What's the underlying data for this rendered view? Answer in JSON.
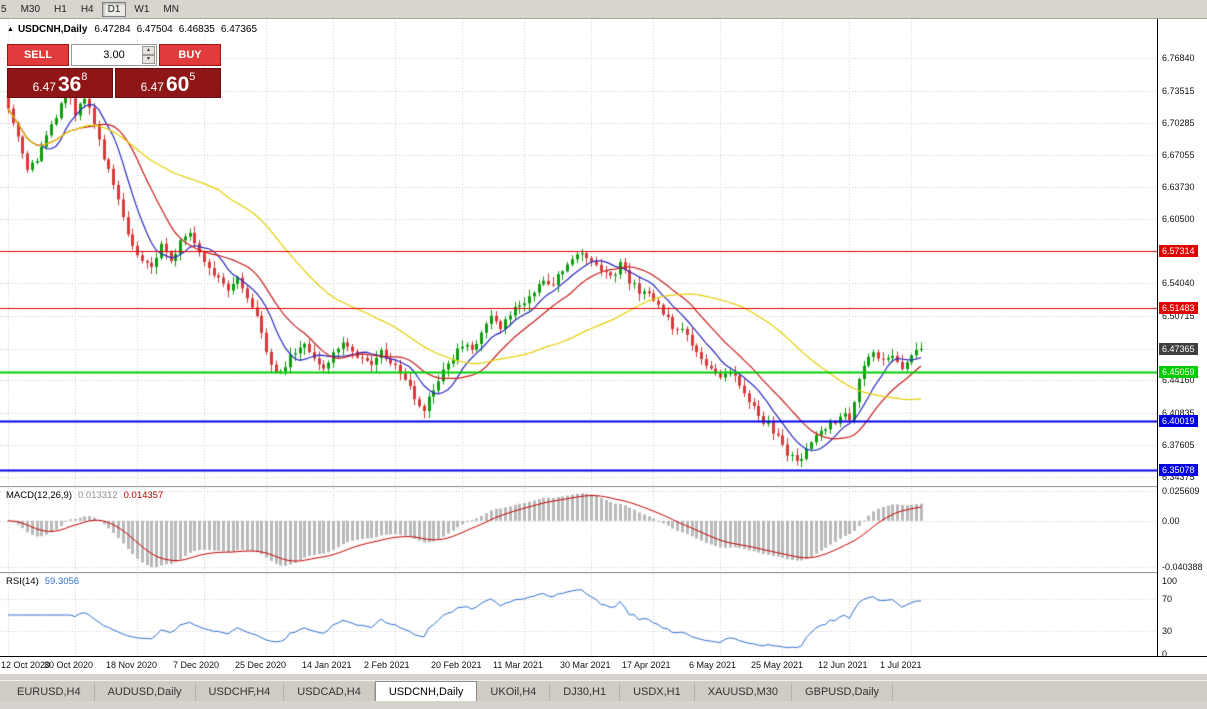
{
  "icons": {
    "collapse": "▲",
    "spin_up": "▲",
    "spin_down": "▼"
  },
  "toolbar": {
    "timeframes": [
      {
        "label": "5",
        "active": false
      },
      {
        "label": "M30",
        "active": false
      },
      {
        "label": "H1",
        "active": false
      },
      {
        "label": "H4",
        "active": false
      },
      {
        "label": "D1",
        "active": true
      },
      {
        "label": "W1",
        "active": false
      },
      {
        "label": "MN",
        "active": false
      }
    ]
  },
  "chart_header": {
    "symbol": "USDCNH,Daily",
    "open": "6.47284",
    "high": "6.47504",
    "low": "6.46835",
    "close": "6.47365"
  },
  "trade_panel": {
    "sell_label": "SELL",
    "buy_label": "BUY",
    "volume": "3.00",
    "sell_price": {
      "big": "6.47",
      "pips": "36",
      "pt": "8"
    },
    "buy_price": {
      "big": "6.47",
      "pips": "60",
      "pt": "5"
    }
  },
  "price_axis": {
    "grid": [
      {
        "label": "6.76840",
        "price": 6.7684
      },
      {
        "label": "6.73515",
        "price": 6.73515
      },
      {
        "label": "6.70285",
        "price": 6.70285
      },
      {
        "label": "6.67055",
        "price": 6.67055
      },
      {
        "label": "6.63730",
        "price": 6.6373
      },
      {
        "label": "6.60500",
        "price": 6.605
      },
      {
        "label": "",
        "price": 6.5727
      },
      {
        "label": "6.54040",
        "price": 6.5404
      },
      {
        "label": "6.50715",
        "price": 6.50715
      },
      {
        "label": "",
        "price": 6.47385
      },
      {
        "label": "6.44160",
        "price": 6.4416
      },
      {
        "label": "6.40835",
        "price": 6.40835
      },
      {
        "label": "6.37605",
        "price": 6.37605
      },
      {
        "label": "6.34375",
        "price": 6.34375
      }
    ],
    "current": {
      "label": "6.47365",
      "price": 6.47365,
      "bg": "#3f3f3f"
    }
  },
  "levels": [
    {
      "label": "6.57314",
      "price": 6.57314,
      "color": "#e00000",
      "width": 1
    },
    {
      "label": "6.51483",
      "price": 6.51483,
      "color": "#e00000",
      "width": 1
    },
    {
      "label": "6.45059",
      "price": 6.45059,
      "color": "#00cc00",
      "width": 2
    },
    {
      "label": "6.40019",
      "price": 6.40019,
      "color": "#0000e0",
      "width": 2
    },
    {
      "label": "6.35078",
      "price": 6.35078,
      "color": "#0000e0",
      "width": 2
    }
  ],
  "macd": {
    "label": "MACD(12,26,9)",
    "value1": "0.013312",
    "value2": "0.014357",
    "fast": 12,
    "slow": 26,
    "signal": 9,
    "vmax": 0.0285,
    "vmin": -0.0445,
    "axis_max": 0.025609,
    "axis_min": -0.040388,
    "axis": [
      {
        "label": "0.025609",
        "v": 0.025609
      },
      {
        "label": "0.00",
        "v": 0
      },
      {
        "label": "-0.040388",
        "v": -0.040388
      }
    ]
  },
  "rsi": {
    "label": "RSI(14)",
    "value": "59.3056",
    "period": 14,
    "dotted": [
      70,
      30
    ],
    "axis": [
      {
        "label": "100",
        "v": 100
      },
      {
        "label": "70",
        "v": 70
      },
      {
        "label": "30",
        "v": 30
      },
      {
        "label": "0",
        "v": 0
      }
    ]
  },
  "tabs": [
    {
      "label": "EURUSD,H4",
      "active": false
    },
    {
      "label": "AUDUSD,Daily",
      "active": false
    },
    {
      "label": "USDCHF,H4",
      "active": false
    },
    {
      "label": "USDCAD,H4",
      "active": false
    },
    {
      "label": "USDCNH,Daily",
      "active": true
    },
    {
      "label": "UKOil,H4",
      "active": false
    },
    {
      "label": "DJ30,H1",
      "active": false
    },
    {
      "label": "USDX,H1",
      "active": false
    },
    {
      "label": "XAUUSD,M30",
      "active": false
    },
    {
      "label": "GBPUSD,Daily",
      "active": false
    }
  ],
  "chart_data": {
    "type": "candlestick",
    "symbol": "USDCNH",
    "timeframe": "Daily",
    "indicators": [
      "MACD(12,26,9)",
      "RSI(14)"
    ],
    "current_bar": {
      "open": 6.47284,
      "high": 6.47504,
      "low": 6.46835,
      "close": 6.47365
    },
    "price_range": {
      "pmax": 6.808,
      "pmin": 6.3346
    },
    "candle_count": 192,
    "x0": 8,
    "dx": 4.78,
    "up_color": "#0f9d0f",
    "down_color": "#d63b3b",
    "ma": [
      {
        "period": 8,
        "color": "#2a2ac0"
      },
      {
        "period": 16,
        "color": "#c81e1e"
      },
      {
        "period": 45,
        "color": "#e3cf00"
      }
    ],
    "x_ticks": [
      {
        "label": "12 Oct 2020",
        "i": 0
      },
      {
        "label": "30 Oct 2020",
        "i": 14
      },
      {
        "label": "18 Nov 2020",
        "i": 27
      },
      {
        "label": "7 Dec 2020",
        "i": 41
      },
      {
        "label": "25 Dec 2020",
        "i": 54
      },
      {
        "label": "14 Jan 2021",
        "i": 68
      },
      {
        "label": "2 Feb 2021",
        "i": 81
      },
      {
        "label": "20 Feb 2021",
        "i": 95
      },
      {
        "label": "11 Mar 2021",
        "i": 108
      },
      {
        "label": "30 Mar 2021",
        "i": 122
      },
      {
        "label": "17 Apr 2021",
        "i": 135
      },
      {
        "label": "6 May 2021",
        "i": 149
      },
      {
        "label": "25 May 2021",
        "i": 162
      },
      {
        "label": "12 Jun 2021",
        "i": 176
      },
      {
        "label": "1 Jul 2021",
        "i": 189
      }
    ],
    "close_anchors": [
      [
        0,
        6.721
      ],
      [
        2,
        6.69
      ],
      [
        4,
        6.652
      ],
      [
        6,
        6.667
      ],
      [
        8,
        6.69
      ],
      [
        10,
        6.705
      ],
      [
        12,
        6.737
      ],
      [
        14,
        6.713
      ],
      [
        16,
        6.727
      ],
      [
        18,
        6.704
      ],
      [
        20,
        6.669
      ],
      [
        22,
        6.637
      ],
      [
        24,
        6.607
      ],
      [
        26,
        6.579
      ],
      [
        28,
        6.564
      ],
      [
        30,
        6.556
      ],
      [
        32,
        6.577
      ],
      [
        34,
        6.561
      ],
      [
        36,
        6.585
      ],
      [
        38,
        6.594
      ],
      [
        40,
        6.572
      ],
      [
        42,
        6.556
      ],
      [
        44,
        6.547
      ],
      [
        46,
        6.533
      ],
      [
        48,
        6.543
      ],
      [
        50,
        6.528
      ],
      [
        52,
        6.509
      ],
      [
        54,
        6.468
      ],
      [
        56,
        6.447
      ],
      [
        58,
        6.457
      ],
      [
        60,
        6.472
      ],
      [
        62,
        6.478
      ],
      [
        64,
        6.462
      ],
      [
        66,
        6.452
      ],
      [
        68,
        6.47
      ],
      [
        70,
        6.481
      ],
      [
        72,
        6.472
      ],
      [
        74,
        6.464
      ],
      [
        76,
        6.457
      ],
      [
        78,
        6.472
      ],
      [
        81,
        6.455
      ],
      [
        83,
        6.441
      ],
      [
        85,
        6.424
      ],
      [
        87,
        6.412
      ],
      [
        89,
        6.432
      ],
      [
        91,
        6.452
      ],
      [
        93,
        6.464
      ],
      [
        95,
        6.479
      ],
      [
        97,
        6.471
      ],
      [
        99,
        6.49
      ],
      [
        101,
        6.504
      ],
      [
        103,
        6.497
      ],
      [
        105,
        6.51
      ],
      [
        108,
        6.52
      ],
      [
        110,
        6.533
      ],
      [
        112,
        6.545
      ],
      [
        114,
        6.54
      ],
      [
        116,
        6.554
      ],
      [
        118,
        6.567
      ],
      [
        120,
        6.572
      ],
      [
        122,
        6.562
      ],
      [
        124,
        6.553
      ],
      [
        126,
        6.546
      ],
      [
        128,
        6.558
      ],
      [
        130,
        6.543
      ],
      [
        132,
        6.531
      ],
      [
        135,
        6.524
      ],
      [
        137,
        6.509
      ],
      [
        139,
        6.497
      ],
      [
        141,
        6.491
      ],
      [
        143,
        6.477
      ],
      [
        145,
        6.464
      ],
      [
        147,
        6.454
      ],
      [
        149,
        6.442
      ],
      [
        151,
        6.45
      ],
      [
        153,
        6.437
      ],
      [
        155,
        6.421
      ],
      [
        157,
        6.406
      ],
      [
        159,
        6.396
      ],
      [
        161,
        6.383
      ],
      [
        163,
        6.369
      ],
      [
        165,
        6.358
      ],
      [
        167,
        6.373
      ],
      [
        169,
        6.387
      ],
      [
        171,
        6.393
      ],
      [
        173,
        6.401
      ],
      [
        175,
        6.408
      ],
      [
        176,
        6.398
      ],
      [
        177,
        6.418
      ],
      [
        178,
        6.444
      ],
      [
        179,
        6.459
      ],
      [
        181,
        6.469
      ],
      [
        183,
        6.46
      ],
      [
        185,
        6.469
      ],
      [
        187,
        6.456
      ],
      [
        189,
        6.464
      ],
      [
        191,
        6.4737
      ]
    ]
  }
}
